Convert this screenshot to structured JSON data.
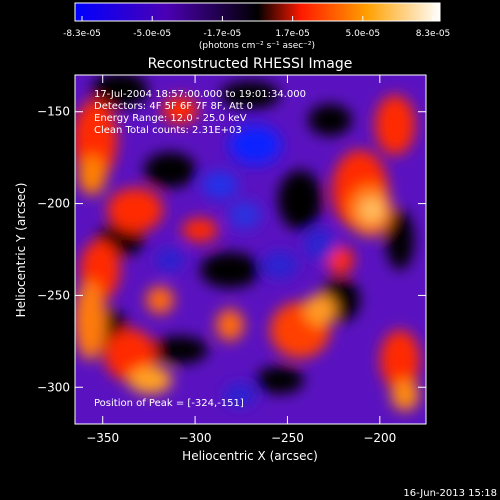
{
  "colorbar": {
    "tick_labels": [
      "-8.3e-05",
      "-5.0e-05",
      "-1.7e-05",
      "1.7e-05",
      "5.0e-05",
      "8.3e-05"
    ],
    "unit_label": "(photons cm⁻² s⁻¹ asec⁻²)"
  },
  "chart_data": {
    "type": "heatmap",
    "title": "Reconstructed RHESSI Image",
    "xlabel": "Heliocentric X (arcsec)",
    "ylabel": "Heliocentric Y (arcsec)",
    "xlim": [
      -365,
      -175
    ],
    "ylim": [
      -320,
      -130
    ],
    "x_ticks": [
      -350,
      -300,
      -250,
      -200
    ],
    "x_tick_labels": [
      "−350",
      "−300",
      "−250",
      "−200"
    ],
    "y_ticks": [
      -300,
      -250,
      -200,
      -150
    ],
    "y_tick_labels": [
      "−300",
      "−250",
      "−200",
      "−150"
    ],
    "color_range": [
      -8.3e-05,
      8.3e-05
    ],
    "colormap": [
      "#0000ff",
      "#4b00b4",
      "#000000",
      "#ff1a00",
      "#ffa000",
      "#ffffff"
    ],
    "annotations": [
      "17-Jul-2004 18:57:00.000 to 19:01:34.000",
      "Detectors: 4F 5F 6F 7F 8F, Att 0",
      "Energy Range: 12.0 - 25.0 keV",
      "Clean    Total counts: 2.31E+03"
    ],
    "peak_label": "Position of Peak = [-324,-151]",
    "peak": [
      -324,
      -151
    ],
    "timestamp": "16-Jun-2013 15:18"
  }
}
